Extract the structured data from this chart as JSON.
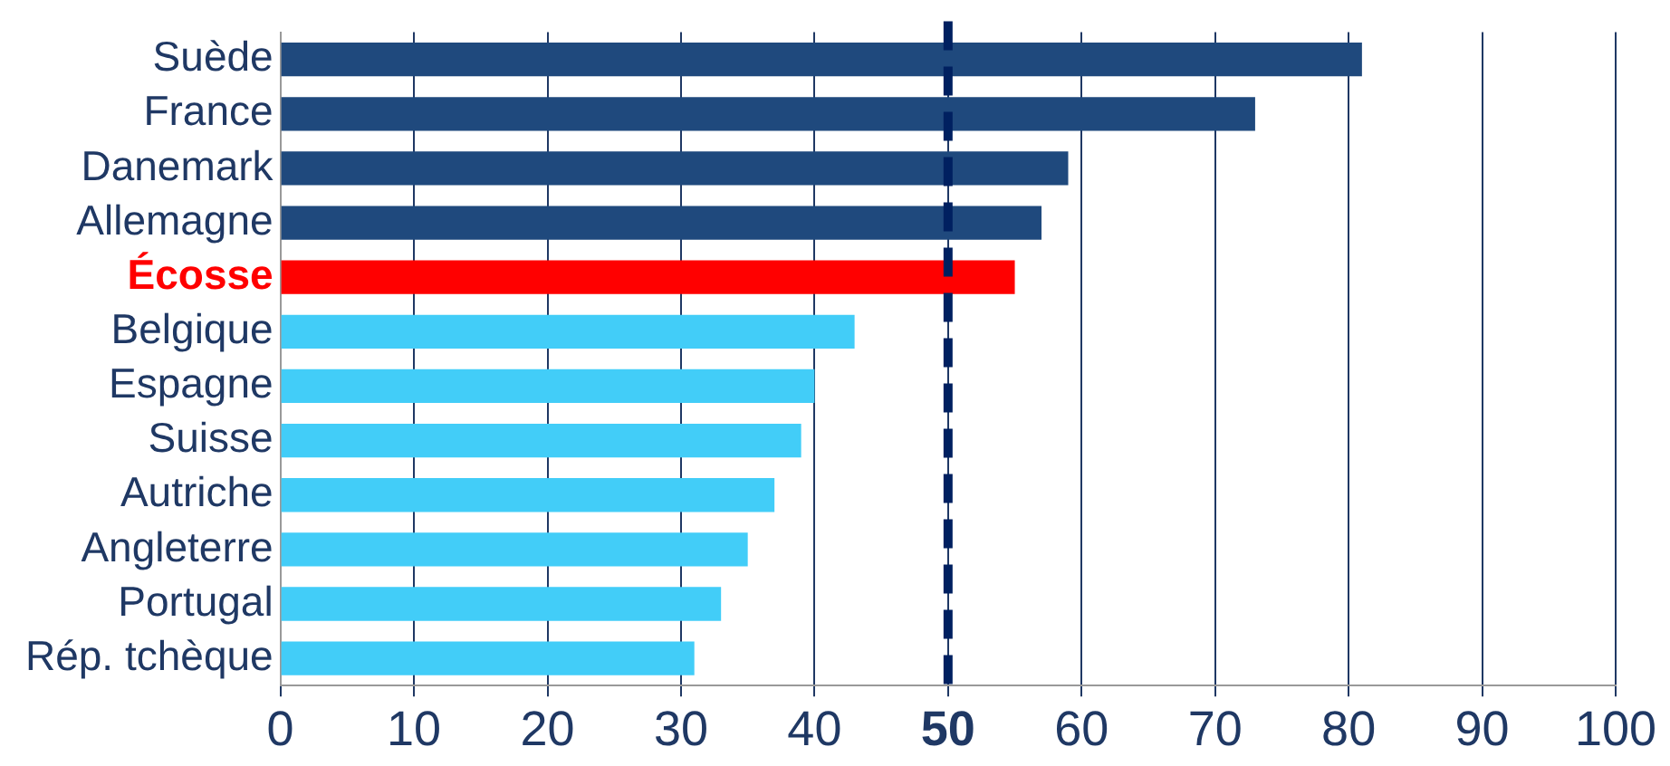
{
  "chart_data": {
    "type": "bar",
    "orientation": "horizontal",
    "categories": [
      "Suède",
      "France",
      "Danemark",
      "Allemagne",
      "Écosse",
      "Belgique",
      "Espagne",
      "Suisse",
      "Autriche",
      "Angleterre",
      "Portugal",
      "Rép. tchèque"
    ],
    "values": [
      81,
      73,
      59,
      57,
      55,
      43,
      40,
      39,
      37,
      35,
      33,
      31
    ],
    "colors": [
      "#1f497d",
      "#1f497d",
      "#1f497d",
      "#1f497d",
      "#ff0000",
      "#42cdf8",
      "#42cdf8",
      "#42cdf8",
      "#42cdf8",
      "#42cdf8",
      "#42cdf8",
      "#42cdf8"
    ],
    "xlim": [
      0,
      100
    ],
    "xticks": [
      0,
      10,
      20,
      30,
      40,
      50,
      60,
      70,
      80,
      90,
      100
    ],
    "grid": "x",
    "legend": false,
    "ref_lines": [
      {
        "axis": "x",
        "value": 50,
        "color": "#002060",
        "line_style": "dashed"
      }
    ]
  }
}
